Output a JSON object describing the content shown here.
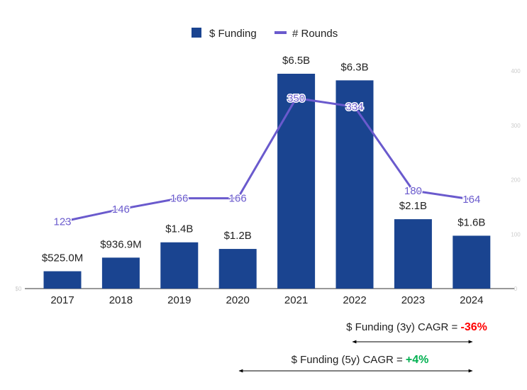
{
  "chart_data": {
    "type": "bar+line",
    "categories": [
      "2017",
      "2018",
      "2019",
      "2020",
      "2021",
      "2022",
      "2023",
      "2024"
    ],
    "legend_position": "top",
    "series": [
      {
        "name": "$ Funding",
        "type": "bar",
        "axis": "left",
        "color": "#1a4490",
        "values": [
          0.525,
          0.9369,
          1.4,
          1.2,
          6.5,
          6.3,
          2.1,
          1.6
        ],
        "labels": [
          "$525.0M",
          "$936.9M",
          "$1.4B",
          "$1.2B",
          "$6.5B",
          "$6.3B",
          "$2.1B",
          "$1.6B"
        ]
      },
      {
        "name": "# Rounds",
        "type": "line",
        "axis": "right",
        "color": "#6a5acd",
        "values": [
          123,
          146,
          166,
          166,
          350,
          334,
          180,
          164
        ],
        "labels": [
          "123",
          "146",
          "166",
          "166",
          "350",
          "334",
          "180",
          "164"
        ]
      }
    ],
    "left_axis": {
      "tick_labels": [
        "$0"
      ],
      "ylim": [
        0,
        6.5
      ]
    },
    "right_axis": {
      "tick_labels": [
        "0",
        "100",
        "200",
        "300",
        "400"
      ],
      "ylim": [
        0,
        400
      ]
    },
    "grid": false
  },
  "annotations": [
    {
      "text": "$ Funding (3y) CAGR = ",
      "value": "-36%",
      "color": "#ff0000",
      "from": "2021",
      "to": "2024"
    },
    {
      "text": "$ Funding (5y) CAGR = ",
      "value": "+4%",
      "color": "#00b050",
      "from": "2019",
      "to": "2024"
    }
  ]
}
